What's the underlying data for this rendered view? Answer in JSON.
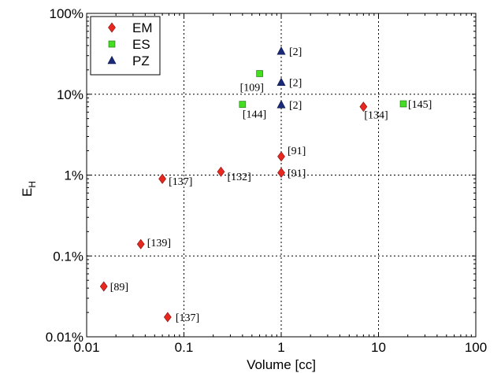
{
  "chart_data": {
    "type": "scatter",
    "x_scale": "log",
    "y_scale": "log",
    "xlabel": "Volume [cc]",
    "ylabel": "E",
    "ylabel_subscript": "H",
    "xlim": [
      0.01,
      100
    ],
    "ylim": [
      0.01,
      100
    ],
    "x_ticks": [
      {
        "value": 0.01,
        "label": "0.01"
      },
      {
        "value": 0.1,
        "label": "0.1"
      },
      {
        "value": 1,
        "label": "1"
      },
      {
        "value": 10,
        "label": "10"
      },
      {
        "value": 100,
        "label": "100"
      }
    ],
    "y_ticks": [
      {
        "value": 0.01,
        "label": "0.01%"
      },
      {
        "value": 0.1,
        "label": "0.1%"
      },
      {
        "value": 1,
        "label": "1%"
      },
      {
        "value": 10,
        "label": "10%"
      },
      {
        "value": 100,
        "label": "100%"
      }
    ],
    "grid": true,
    "legend_position": "top-left",
    "series": [
      {
        "name": "EM",
        "marker": "diamond",
        "color": "#e8281e",
        "points": [
          {
            "x": 0.015,
            "y": 0.042,
            "label": "[89]"
          },
          {
            "x": 0.068,
            "y": 0.0175,
            "label": "[137]"
          },
          {
            "x": 0.036,
            "y": 0.14,
            "label": "[139]"
          },
          {
            "x": 0.06,
            "y": 0.9,
            "label": "[137]"
          },
          {
            "x": 0.24,
            "y": 1.1,
            "label": "[132]"
          },
          {
            "x": 1.0,
            "y": 1.07,
            "label": "[91]"
          },
          {
            "x": 1.0,
            "y": 1.7,
            "label": "[91]"
          },
          {
            "x": 7.0,
            "y": 7.0,
            "label": "[134]"
          }
        ]
      },
      {
        "name": "ES",
        "marker": "square",
        "color": "#44dd22",
        "points": [
          {
            "x": 0.6,
            "y": 18.0,
            "label": "[109]"
          },
          {
            "x": 0.4,
            "y": 7.5,
            "label": "[144]"
          },
          {
            "x": 18.0,
            "y": 7.6,
            "label": "[145]"
          }
        ]
      },
      {
        "name": "PZ",
        "marker": "triangle",
        "color": "#1a2a7a",
        "points": [
          {
            "x": 1.0,
            "y": 34.0,
            "label": "[2]"
          },
          {
            "x": 1.0,
            "y": 14.0,
            "label": "[2]"
          },
          {
            "x": 1.0,
            "y": 7.4,
            "label": "[2]"
          }
        ]
      }
    ]
  }
}
